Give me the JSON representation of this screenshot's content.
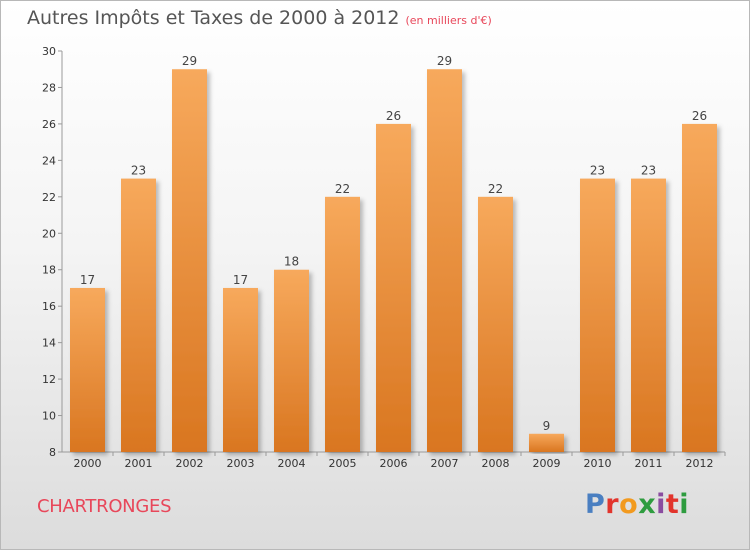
{
  "title": "Autres Impôts et Taxes de 2000 à 2012",
  "subtitle": "(en milliers d'€)",
  "commune": "CHARTRONGES",
  "logo": {
    "text": "Proxiti",
    "colors": [
      "#4a7fc1",
      "#e2342c",
      "#f29a1f",
      "#2e9c3f",
      "#8a4ca0",
      "#e2342c",
      "#2e9c3f"
    ]
  },
  "colors": {
    "bar_light": "#f7a95c",
    "bar_dark": "#d97620",
    "title": "#555555",
    "commune": "#e8475a"
  },
  "chart_data": {
    "type": "bar",
    "title": "Autres Impôts et Taxes de 2000 à 2012",
    "subtitle": "(en milliers d'€)",
    "categories": [
      "2000",
      "2001",
      "2002",
      "2003",
      "2004",
      "2005",
      "2006",
      "2007",
      "2008",
      "2009",
      "2010",
      "2011",
      "2012"
    ],
    "values": [
      17,
      23,
      29,
      17,
      18,
      22,
      26,
      29,
      22,
      9,
      23,
      23,
      26
    ],
    "ylim": [
      8,
      30
    ],
    "yticks": [
      8,
      10,
      12,
      14,
      16,
      18,
      20,
      22,
      24,
      26,
      28,
      30
    ],
    "grid": false,
    "legend": "none"
  }
}
